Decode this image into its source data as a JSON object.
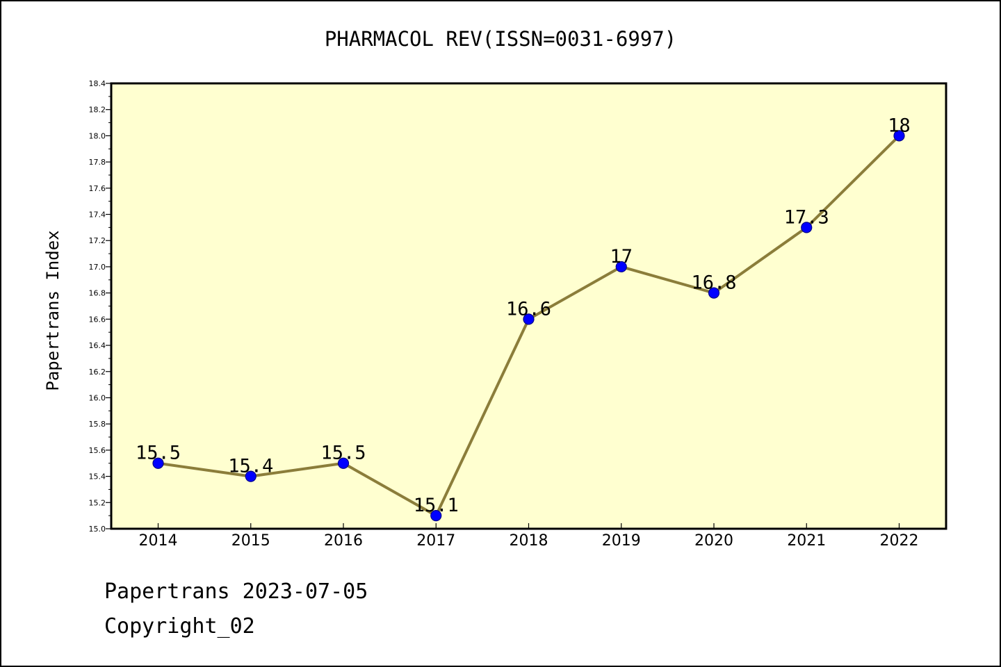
{
  "chart_data": {
    "type": "line",
    "title": "PHARMACOL REV(ISSN=0031-6997)",
    "xlabel": "",
    "ylabel": "Papertrans Index",
    "categories": [
      "2014",
      "2015",
      "2016",
      "2017",
      "2018",
      "2019",
      "2020",
      "2021",
      "2022"
    ],
    "series": [
      {
        "values": [
          15.5,
          15.4,
          15.5,
          15.1,
          16.6,
          17.0,
          16.8,
          17.3,
          18.0
        ]
      }
    ],
    "data_labels": [
      "15.5",
      "15.4",
      "15.5",
      "15.1",
      "16.6",
      "17",
      "16.8",
      "17.3",
      "18"
    ],
    "ylim": [
      15.0,
      18.4
    ],
    "yticks": [
      "15.0",
      "15.2",
      "15.4",
      "15.6",
      "15.8",
      "16.0",
      "16.2",
      "16.4",
      "16.6",
      "16.8",
      "17.0",
      "17.2",
      "17.4",
      "17.6",
      "17.8",
      "18.0",
      "18.2",
      "18.4"
    ],
    "grid": false,
    "legend": "none",
    "colors": {
      "plot_background": "#ffffd0",
      "line": "#8b7d3a",
      "marker_fill": "#0000ff",
      "marker_edge": "#00008b",
      "axis": "#000000"
    }
  },
  "footer": {
    "line1": "Papertrans 2023-07-05",
    "line2": "Copyright_02"
  }
}
